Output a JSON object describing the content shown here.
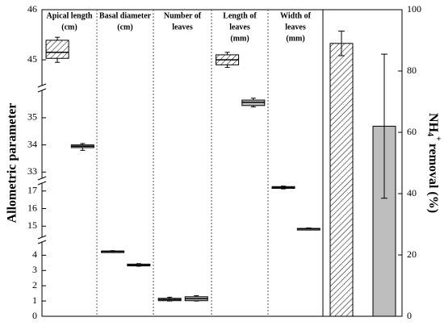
{
  "chart_data": {
    "type": "box",
    "y_label": "Allometric parameter",
    "y2_label": {
      "main": "NH",
      "sub": "4",
      "sup": "+",
      "rest": "removal (%)"
    },
    "y_segments": [
      {
        "ylim": [
          0,
          4.6
        ],
        "yticks": [
          0,
          1,
          2,
          3,
          4
        ]
      },
      {
        "ylim": [
          14.6,
          17.4
        ],
        "yticks": [
          15,
          16,
          17
        ]
      },
      {
        "ylim": [
          32.8,
          35.8
        ],
        "yticks": [
          33,
          34,
          35
        ]
      },
      {
        "ylim": [
          44.6,
          46
        ],
        "yticks": [
          45,
          46
        ]
      }
    ],
    "y2lim": [
      0,
      100
    ],
    "y2ticks": [
      0,
      20,
      40,
      60,
      80,
      100
    ],
    "panels": [
      {
        "title": [
          "Apical length",
          "(cm)"
        ],
        "boxes": [
          {
            "whislo": 44.95,
            "q1": 45.03,
            "median": 45.15,
            "q3": 45.39,
            "whishi": 45.45
          },
          {
            "whislo": 33.8,
            "q1": 33.9,
            "median": 33.95,
            "q3": 34.0,
            "whishi": 34.05
          }
        ]
      },
      {
        "title": [
          "Basal diameter",
          "(cm)"
        ],
        "boxes": [
          {
            "whislo": 4.2,
            "q1": 4.22,
            "median": 4.25,
            "q3": 4.28,
            "whishi": 4.3
          },
          {
            "whislo": 3.28,
            "q1": 3.3,
            "median": 3.35,
            "q3": 3.42,
            "whishi": 3.45
          }
        ]
      },
      {
        "title": [
          "Number of",
          "leaves"
        ],
        "boxes": [
          {
            "whislo": 1.0,
            "q1": 1.02,
            "median": 1.1,
            "q3": 1.18,
            "whishi": 1.25
          },
          {
            "whislo": 1.0,
            "q1": 1.02,
            "median": 1.15,
            "q3": 1.28,
            "whishi": 1.35
          }
        ]
      },
      {
        "title": [
          "Length of",
          "leaves",
          "(mm)"
        ],
        "boxes": [
          {
            "whislo": 44.85,
            "q1": 44.9,
            "median": 45.0,
            "q3": 45.1,
            "whishi": 45.15
          },
          {
            "whislo": 35.4,
            "q1": 35.45,
            "median": 35.57,
            "q3": 35.65,
            "whishi": 35.72
          }
        ]
      },
      {
        "title": [
          "Width of",
          "leaves",
          "(mm)"
        ],
        "boxes": [
          {
            "whislo": 17.12,
            "q1": 17.15,
            "median": 17.2,
            "q3": 17.25,
            "whishi": 17.28
          },
          {
            "whislo": 14.8,
            "q1": 14.83,
            "median": 14.85,
            "q3": 14.87,
            "whishi": 14.9
          }
        ]
      }
    ],
    "bars": {
      "axis": "y2",
      "values": [
        89,
        62
      ],
      "errors": [
        4,
        23.5
      ],
      "colors": [
        "#ffffff",
        "#bdbdbd"
      ]
    }
  }
}
